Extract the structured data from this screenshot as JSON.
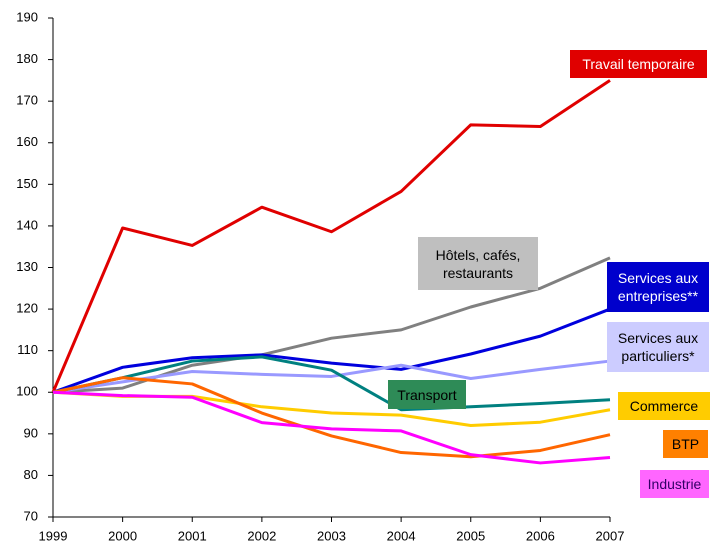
{
  "chart_data": {
    "type": "line",
    "categories": [
      "1999",
      "2000",
      "2001",
      "2002",
      "2003",
      "2004",
      "2005",
      "2006",
      "2007"
    ],
    "series": [
      {
        "name": "Travail temporaire",
        "color": "#e00000",
        "values": [
          100,
          139.5,
          135.3,
          144.5,
          138.6,
          148.3,
          164.3,
          163.9,
          175
        ]
      },
      {
        "name": "Hôtels, cafés, restaurants",
        "color": "#808080",
        "values": [
          100,
          101,
          106.5,
          109,
          113,
          115,
          120.5,
          125,
          132.3
        ]
      },
      {
        "name": "Services aux entreprises**",
        "color": "#0000dd",
        "values": [
          100,
          106,
          108.3,
          109,
          107,
          105.5,
          109.2,
          113.5,
          120
        ]
      },
      {
        "name": "Services aux particuliers*",
        "color": "#9999ff",
        "values": [
          100,
          102.5,
          105,
          104.3,
          103.8,
          106.5,
          103.3,
          105.5,
          107.5
        ]
      },
      {
        "name": "Transport",
        "color": "#008080",
        "values": [
          100,
          103.5,
          107.5,
          108.5,
          105.3,
          95.8,
          96.5,
          97.3,
          98.2
        ]
      },
      {
        "name": "Commerce",
        "color": "#ffcc00",
        "values": [
          100,
          99,
          99,
          96.5,
          95,
          94.5,
          92,
          92.8,
          95.8
        ]
      },
      {
        "name": "BTP",
        "color": "#ff6600",
        "values": [
          100,
          103.5,
          102,
          95,
          89.5,
          85.5,
          84.5,
          86,
          89.8
        ]
      },
      {
        "name": "Industrie",
        "color": "#ff00ff",
        "values": [
          100,
          99.2,
          98.8,
          92.7,
          91.2,
          90.7,
          85,
          83,
          84.3
        ]
      }
    ],
    "ylim": [
      70,
      190
    ],
    "yticks": [
      70,
      80,
      90,
      100,
      110,
      120,
      130,
      140,
      150,
      160,
      170,
      180,
      190
    ]
  }
}
